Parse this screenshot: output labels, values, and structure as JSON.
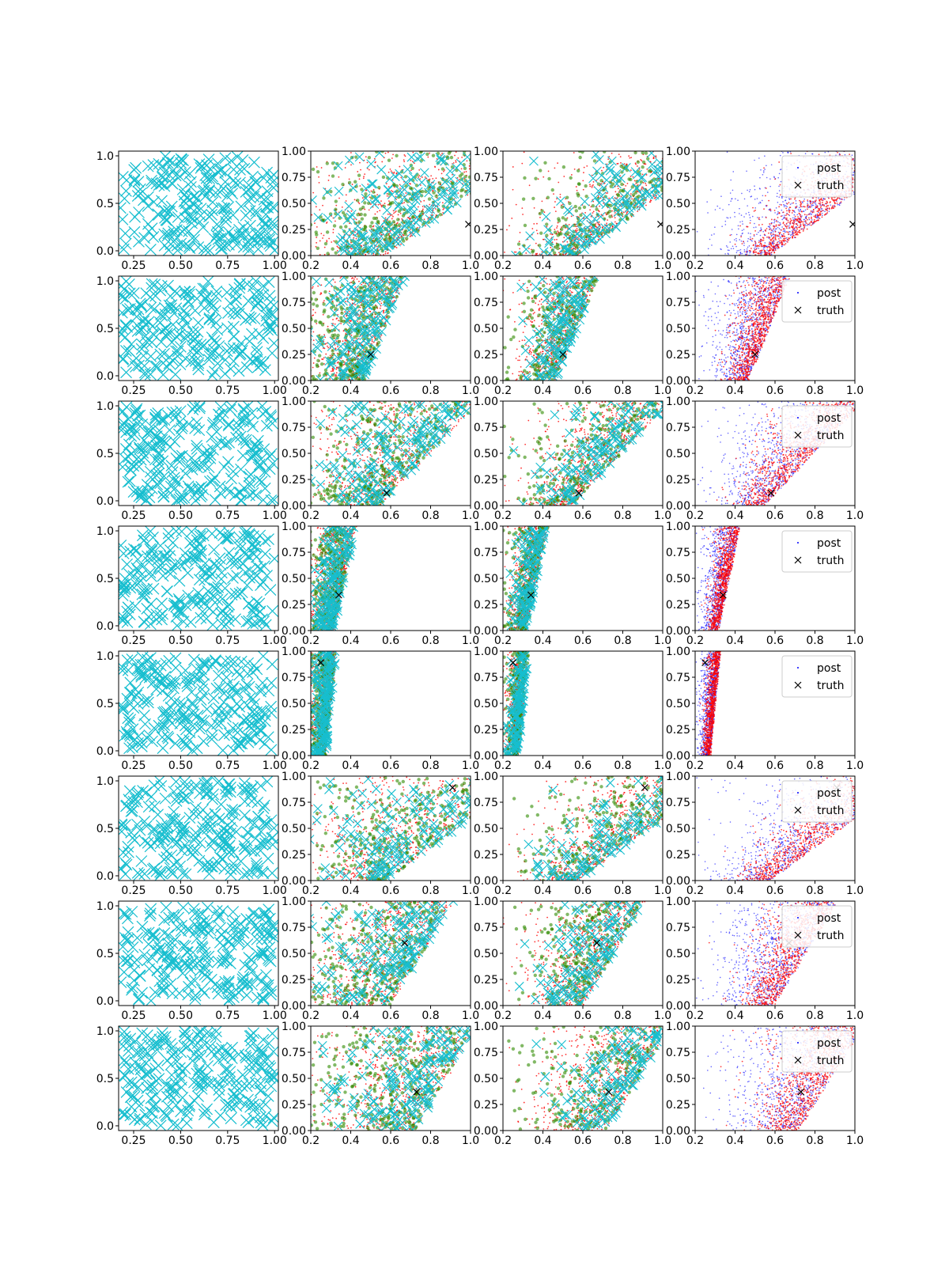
{
  "figure": {
    "rows": 8,
    "cols": 4
  },
  "colors": {
    "prior_marker": "#17becf",
    "sample_red": "#ff0000",
    "sample_green": "#2e8b00",
    "sample_blue": "#0000ff",
    "truth_marker": "#000000",
    "axis": "#000000"
  },
  "legend": {
    "post": "post",
    "truth": "truth",
    "placement": "upper right"
  },
  "chart_data": {
    "type": "scatter",
    "grid": false,
    "columns": [
      {
        "kind": "prior-design",
        "xlim": [
          0.17,
          1.02
        ],
        "ylim": [
          -0.05,
          1.05
        ],
        "xticks": [
          0.25,
          0.5,
          0.75,
          1.0
        ],
        "xtick_labels": [
          "0.25",
          "0.50",
          "0.75",
          "1.00"
        ],
        "yticks": [
          0.0,
          0.5,
          1.0
        ],
        "ytick_labels": [
          "0.0",
          "0.5",
          "1.0"
        ]
      },
      {
        "kind": "samples-red-green-cyan",
        "xlim": [
          0.2,
          1.0
        ],
        "ylim": [
          0.0,
          1.0
        ],
        "xticks": [
          0.2,
          0.4,
          0.6,
          0.8,
          1.0
        ],
        "xtick_labels": [
          "0.2",
          "0.4",
          "0.6",
          "0.8",
          "1.0"
        ],
        "yticks": [
          0.0,
          0.25,
          0.5,
          0.75,
          1.0
        ],
        "ytick_labels": [
          "0.00",
          "0.25",
          "0.50",
          "0.75",
          "1.00"
        ]
      },
      {
        "kind": "samples-red-green-cyan-narrow",
        "xlim": [
          0.2,
          1.0
        ],
        "ylim": [
          0.0,
          1.0
        ],
        "xticks": [
          0.2,
          0.4,
          0.6,
          0.8,
          1.0
        ],
        "xtick_labels": [
          "0.2",
          "0.4",
          "0.6",
          "0.8",
          "1.0"
        ],
        "yticks": [
          0.0,
          0.25,
          0.5,
          0.75,
          1.0
        ],
        "ytick_labels": [
          "0.00",
          "0.25",
          "0.50",
          "0.75",
          "1.00"
        ]
      },
      {
        "kind": "posterior-red-blue",
        "xlim": [
          0.2,
          1.0
        ],
        "ylim": [
          0.0,
          1.0
        ],
        "xticks": [
          0.2,
          0.4,
          0.6,
          0.8,
          1.0
        ],
        "xtick_labels": [
          "0.2",
          "0.4",
          "0.6",
          "0.8",
          "1.0"
        ],
        "yticks": [
          0.0,
          0.25,
          0.5,
          0.75,
          1.0
        ],
        "ytick_labels": [
          "0.00",
          "0.25",
          "0.50",
          "0.75",
          "1.00"
        ],
        "legend": [
          "post",
          "truth"
        ]
      }
    ],
    "rows": [
      {
        "truth": [
          0.99,
          0.3
        ],
        "boundary_at_y0": 0.58,
        "boundary_at_y1": 1.3
      },
      {
        "truth": [
          0.5,
          0.25
        ],
        "boundary_at_y0": 0.47,
        "boundary_at_y1": 0.68
      },
      {
        "truth": [
          0.58,
          0.12
        ],
        "boundary_at_y0": 0.55,
        "boundary_at_y1": 1.05
      },
      {
        "truth": [
          0.34,
          0.34
        ],
        "boundary_at_y0": 0.32,
        "boundary_at_y1": 0.43
      },
      {
        "truth": [
          0.25,
          0.89
        ],
        "boundary_at_y0": 0.28,
        "boundary_at_y1": 0.33
      },
      {
        "truth": [
          0.91,
          0.89
        ],
        "boundary_at_y0": 0.58,
        "boundary_at_y1": 1.3
      },
      {
        "truth": [
          0.67,
          0.6
        ],
        "boundary_at_y0": 0.6,
        "boundary_at_y1": 0.92
      },
      {
        "truth": [
          0.73,
          0.37
        ],
        "boundary_at_y0": 0.72,
        "boundary_at_y1": 1.05
      }
    ]
  }
}
